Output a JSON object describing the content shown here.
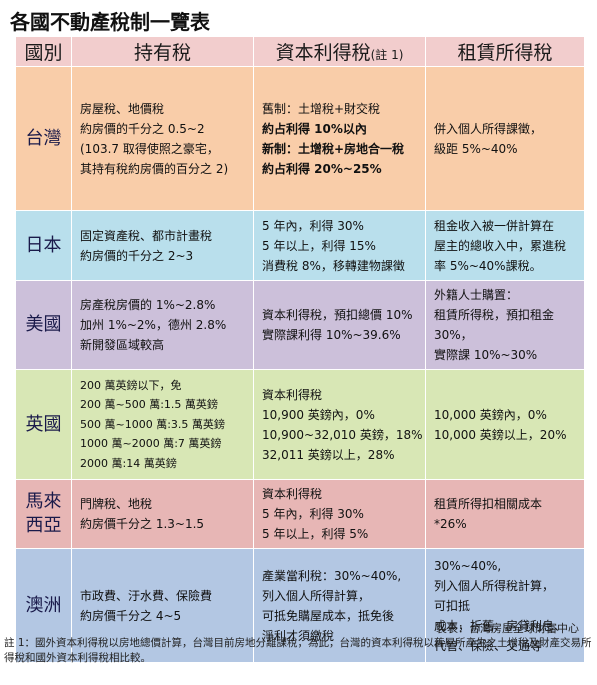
{
  "title": "各國不動產稅制一覽表",
  "headers": {
    "country": "國別",
    "holding": "持有稅",
    "capital_gains": "資本利得稅",
    "capital_gains_note": "(註 1)",
    "rental": "租賃所得稅"
  },
  "rows": [
    {
      "country": [
        "台灣"
      ],
      "holding": [
        "房屋稅、地價稅",
        "約房價的千分之 0.5~2",
        "(103.7 取得使照之豪宅，",
        "其持有稅約房價的百分之 2)"
      ],
      "capital_gains": [
        "舊制：土增稅+財交稅",
        "約占利得 10%以內",
        "新制：土增稅+房地合一稅",
        "約占利得 20%~25%"
      ],
      "rental": [
        "併入個人所得課徵，",
        "級距 5%~40%"
      ]
    },
    {
      "country": [
        "日本"
      ],
      "holding": [
        "固定資產稅、都市計畫稅",
        "約房價的千分之 2~3"
      ],
      "capital_gains": [
        "5 年內，利得 30%",
        "5 年以上，利得 15%",
        "消費稅 8%，移轉建物課徵"
      ],
      "rental": [
        "租金收入被一併計算在",
        "屋主的總收入中，累進稅",
        "率 5%~40%課稅。"
      ]
    },
    {
      "country": [
        "美國"
      ],
      "holding": [
        "房產稅房價的 1%~2.8%",
        "加州 1%~2%，德州 2.8%",
        "新開發區域較高"
      ],
      "capital_gains": [
        "資本利得稅，預扣總價 10%",
        "實際課利得 10%~39.6%"
      ],
      "rental": [
        "外籍人士購置：",
        "租賃所得稅，預扣租金",
        "30%，",
        "實際課 10%~30%"
      ]
    },
    {
      "country": [
        "英國"
      ],
      "holding": [
        "200 萬英鎊以下，免",
        "200 萬~500 萬:1.5 萬英鎊",
        "500 萬~1000 萬:3.5 萬英鎊",
        "1000 萬~2000 萬:7 萬英鎊",
        "2000 萬:14 萬英鎊"
      ],
      "capital_gains": [
        "資本利得稅",
        "10,900 英鎊內，0%",
        "10,900~32,010 英鎊，18%",
        "32,011 英鎊以上，28%"
      ],
      "rental": [
        "10,000 英鎊內，0%",
        "10,000 英鎊以上，20%"
      ]
    },
    {
      "country": [
        "馬來",
        "西亞"
      ],
      "holding": [
        "門牌稅、地稅",
        "約房價千分之 1.3~1.5"
      ],
      "capital_gains": [
        "資本利得稅",
        "5 年內，利得 30%",
        "5 年以上，利得 5%"
      ],
      "rental": [
        "租賃所得扣相關成本",
        "*26%"
      ]
    },
    {
      "country": [
        "澳洲"
      ],
      "holding": [
        "市政費、汙水費、保險費",
        "約房價千分之 4~5"
      ],
      "capital_gains": [
        "產業當利稅：30%~40%,",
        "列入個人所得計算，",
        "可抵免購屋成本，抵免後",
        "淨利才須繳稅"
      ],
      "rental": [
        "30%~40%,",
        "列入個人所得稅計算，",
        "可扣抵",
        "成本，折舊、房貸利息、",
        "代管、保險、交通等"
      ]
    }
  ],
  "source": "製表：台灣房屋全球財富中心",
  "note": "註 1：國外資本利得稅以房地總價計算，台灣目前房地分離課稅，為此，台灣的資本利得稅以舊屋所產生之土增稅及財產交易所得稅和國外資本利得稅相比較。",
  "colors": {
    "header": "#f2cdcd",
    "taiwan": "#f9cda9",
    "japan": "#b9dfec",
    "usa": "#ccc0da",
    "uk": "#d8e7b5",
    "malaysia": "#e7b6b5",
    "australia": "#b3c7e3"
  }
}
